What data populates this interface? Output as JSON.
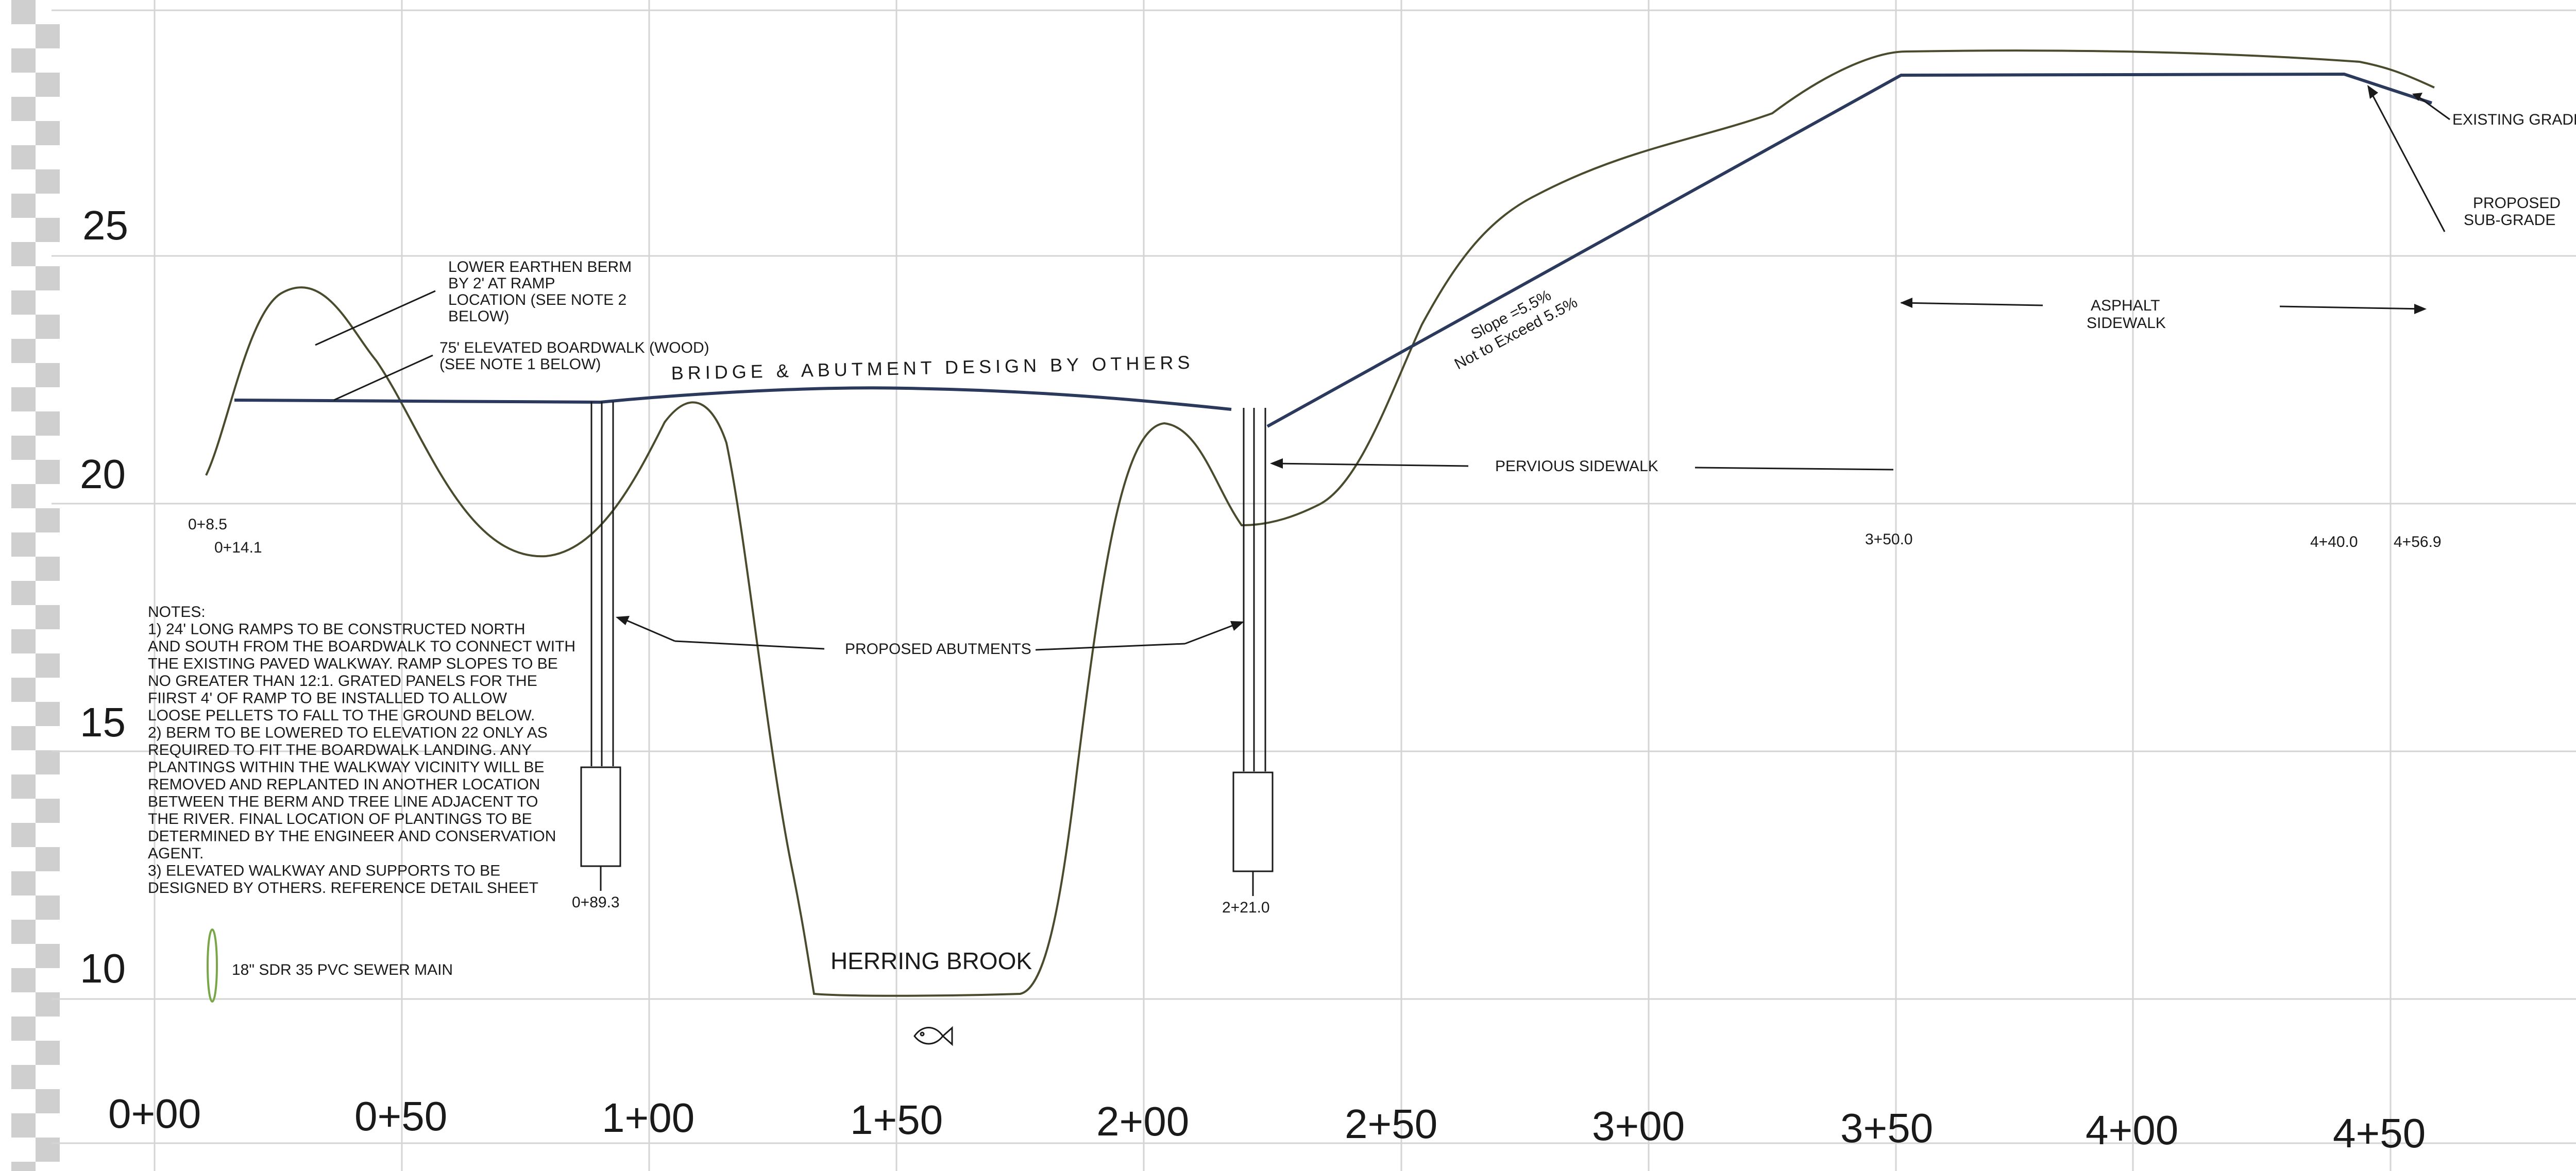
{
  "drawing": {
    "title_banner": "BRIDGE & ABUTMENT DESIGN BY OTHERS",
    "elevation_labels": [
      "25",
      "20",
      "15",
      "10"
    ],
    "station_labels": [
      "0+00",
      "0+50",
      "1+00",
      "1+50",
      "2+00",
      "2+50",
      "3+00",
      "3+50",
      "4+00",
      "4+50"
    ],
    "station_callouts": [
      "0+8.5",
      "0+14.1",
      "0+89.3",
      "2+21.0",
      "3+50.0",
      "4+40.0",
      "4+56.9"
    ],
    "callouts": {
      "berm": [
        "LOWER EARTHEN BERM",
        "BY 2' AT RAMP",
        "LOCATION (SEE NOTE 2",
        "BELOW)"
      ],
      "boardwalk": [
        "75' ELEVATED BOARDWALK (WOOD)",
        "(SEE NOTE 1 BELOW)"
      ],
      "abutments": "PROPOSED ABUTMENTS",
      "pervious": "PERVIOUS SIDEWALK",
      "asphalt": [
        "ASPHALT",
        "SIDEWALK"
      ],
      "existing_grade": "EXISTING GRADE",
      "proposed_subgrade": [
        "PROPOSED",
        "SUB-GRADE"
      ],
      "slope": [
        "Slope =5.5%",
        "Not to Exceed 5.5%"
      ],
      "brook": "HERRING BROOK"
    },
    "notes": [
      "NOTES:",
      "1) 24' LONG RAMPS TO BE CONSTRUCTED NORTH",
      "AND SOUTH FROM THE BOARDWALK TO CONNECT WITH",
      "THE EXISTING PAVED WALKWAY. RAMP SLOPES TO BE",
      "NO GREATER THAN 12:1. GRATED PANELS FOR THE",
      "FIIRST 4' OF RAMP TO BE INSTALLED TO ALLOW",
      "LOOSE PELLETS TO FALL TO THE GROUND BELOW.",
      "2) BERM TO BE LOWERED TO ELEVATION 22 ONLY AS",
      "REQUIRED TO FIT THE BOARDWALK LANDING. ANY",
      "PLANTINGS WITHIN THE WALKWAY VICINITY WILL BE",
      "REMOVED AND REPLANTED IN ANOTHER LOCATION",
      "BETWEEN THE BERM AND TREE LINE ADJACENT TO",
      "THE RIVER. FINAL LOCATION OF PLANTINGS TO BE",
      "DETERMINED BY THE ENGINEER AND CONSERVATION",
      "AGENT.",
      "3) ELEVATED WALKWAY AND SUPPORTS TO BE",
      "DESIGNED BY OTHERS. REFERENCE DETAIL SHEET"
    ],
    "legend": {
      "sewer": "18\" SDR 35 PVC SEWER MAIN"
    },
    "colors": {
      "proposed_line": "#2b3a5c",
      "existing_grade": "#4a4a2c",
      "sewer_symbol": "#7aa64a",
      "grid": "#d4d4d4",
      "scan_checker": "#cfcfcf"
    }
  }
}
